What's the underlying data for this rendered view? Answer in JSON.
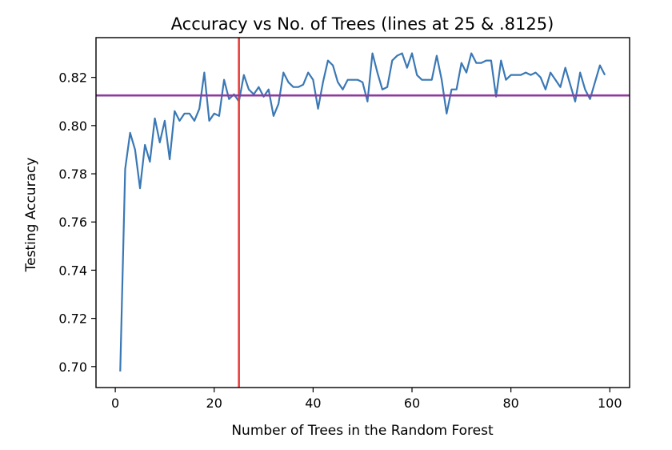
{
  "chart_data": {
    "type": "line",
    "title": "Accuracy vs No. of Trees (lines at 25 & .8125)",
    "xlabel": "Number of Trees in the Random Forest",
    "ylabel": "Testing Accuracy",
    "xlim": [
      -3.9,
      104
    ],
    "ylim": [
      0.6913,
      0.8365
    ],
    "xticks": [
      0,
      20,
      40,
      60,
      80,
      100
    ],
    "xtick_labels": [
      "0",
      "20",
      "40",
      "60",
      "80",
      "100"
    ],
    "yticks": [
      0.7,
      0.72,
      0.74,
      0.76,
      0.78,
      0.8,
      0.82
    ],
    "ytick_labels": [
      "0.70",
      "0.72",
      "0.74",
      "0.76",
      "0.78",
      "0.80",
      "0.82"
    ],
    "grid": false,
    "colors": {
      "series": "#3a78b5",
      "vline": "#e8403c",
      "hline": "#8e3b9e",
      "axes": "#000000"
    },
    "series": [
      {
        "x": [
          1,
          2,
          3,
          4,
          5,
          6,
          7,
          8,
          9,
          10,
          11,
          12,
          13,
          14,
          15,
          16,
          17,
          18,
          19,
          20,
          21,
          22,
          23,
          24,
          25,
          26,
          27,
          28,
          29,
          30,
          31,
          32,
          33,
          34,
          35,
          36,
          37,
          38,
          39,
          40,
          41,
          42,
          43,
          44,
          45,
          46,
          47,
          48,
          49,
          50,
          51,
          52,
          53,
          54,
          55,
          56,
          57,
          58,
          59,
          60,
          61,
          62,
          63,
          64,
          65,
          66,
          67,
          68,
          69,
          70,
          71,
          72,
          73,
          74,
          75,
          76,
          77,
          78,
          79,
          80,
          81,
          82,
          83,
          84,
          85,
          86,
          87,
          88,
          89,
          90,
          91,
          92,
          93,
          94,
          95,
          96,
          97,
          98,
          99
        ],
        "y": [
          0.698,
          0.782,
          0.797,
          0.79,
          0.774,
          0.792,
          0.785,
          0.803,
          0.793,
          0.802,
          0.786,
          0.806,
          0.802,
          0.805,
          0.805,
          0.802,
          0.807,
          0.822,
          0.802,
          0.805,
          0.804,
          0.819,
          0.811,
          0.813,
          0.81,
          0.821,
          0.815,
          0.813,
          0.816,
          0.812,
          0.815,
          0.804,
          0.809,
          0.822,
          0.818,
          0.816,
          0.816,
          0.817,
          0.822,
          0.819,
          0.807,
          0.818,
          0.827,
          0.825,
          0.818,
          0.815,
          0.819,
          0.819,
          0.819,
          0.818,
          0.81,
          0.83,
          0.822,
          0.815,
          0.816,
          0.827,
          0.829,
          0.83,
          0.824,
          0.83,
          0.821,
          0.819,
          0.819,
          0.819,
          0.829,
          0.819,
          0.805,
          0.815,
          0.815,
          0.826,
          0.822,
          0.83,
          0.826,
          0.826,
          0.827,
          0.827,
          0.812,
          0.827,
          0.819,
          0.821,
          0.821,
          0.821,
          0.822,
          0.821,
          0.822,
          0.82,
          0.815,
          0.822,
          0.819,
          0.816,
          0.824,
          0.817,
          0.81,
          0.822,
          0.815,
          0.811,
          0.818,
          0.825,
          0.821
        ]
      }
    ],
    "reference_lines": {
      "vertical_x": 25,
      "horizontal_y": 0.8125
    }
  }
}
